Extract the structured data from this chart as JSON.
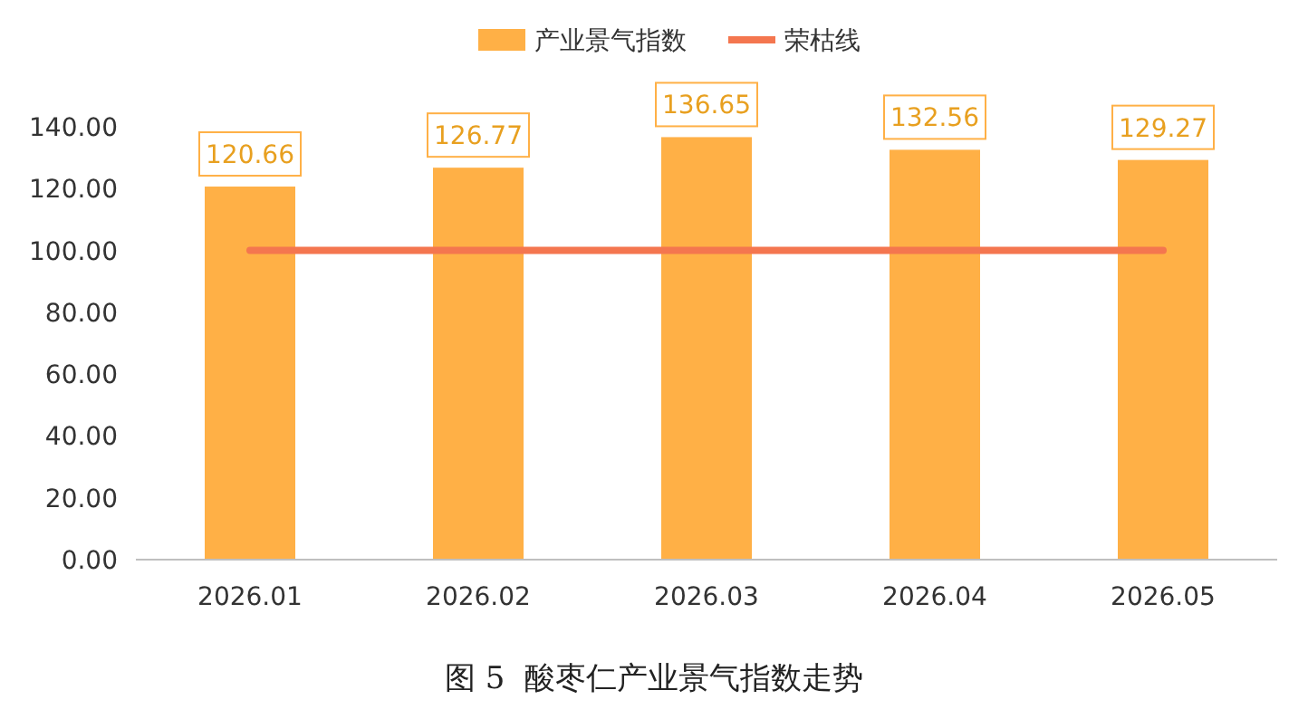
{
  "chart_data": {
    "type": "bar",
    "title": "图 5  酸枣仁产业景气指数走势",
    "categories": [
      "2026.01",
      "2026.02",
      "2026.03",
      "2026.04",
      "2026.05"
    ],
    "series": [
      {
        "name": "产业景气指数",
        "color": "#ffb046",
        "values": [
          120.66,
          126.77,
          136.65,
          132.56,
          129.27
        ],
        "value_labels": [
          "120.66",
          "126.77",
          "136.65",
          "132.56",
          "129.27"
        ]
      },
      {
        "name": "荣枯线",
        "type": "line",
        "color": "#f4764f",
        "values": [
          100,
          100,
          100,
          100,
          100
        ]
      }
    ],
    "ylim": [
      0,
      140
    ],
    "yticks": [
      {
        "value": 0,
        "label": "0.00"
      },
      {
        "value": 20,
        "label": "20.00"
      },
      {
        "value": 40,
        "label": "40.00"
      },
      {
        "value": 60,
        "label": "60.00"
      },
      {
        "value": 80,
        "label": "80.00"
      },
      {
        "value": 100,
        "label": "100.00"
      },
      {
        "value": 120,
        "label": "120.00"
      },
      {
        "value": 140,
        "label": "140.00"
      }
    ],
    "grid": false,
    "legend": "top",
    "marker": "none",
    "line_style": "solid"
  }
}
